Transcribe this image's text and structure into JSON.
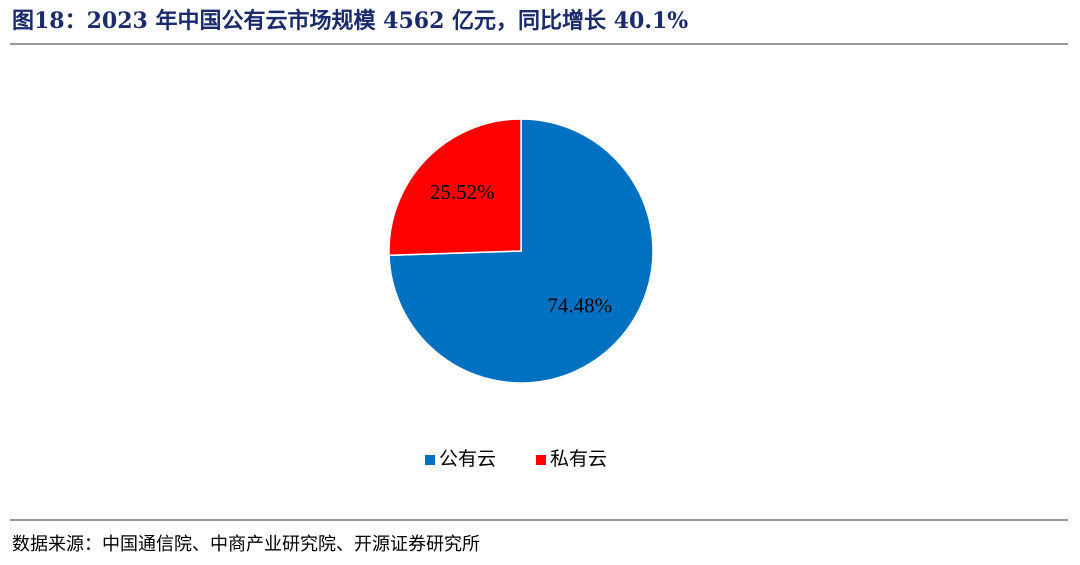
{
  "chart_data": {
    "type": "pie",
    "title": "图18：2023 年中国公有云市场规模 4562 亿元，同比增长 40.1%",
    "categories": [
      "公有云",
      "私有云"
    ],
    "values": [
      74.48,
      25.52
    ],
    "value_labels": [
      "74.48%",
      "25.52%"
    ],
    "colors": [
      "#0070C0",
      "#FF0000"
    ],
    "legend": "bottom",
    "source": "数据来源：中国通信院、中商产业研究院、开源证券研究所"
  }
}
